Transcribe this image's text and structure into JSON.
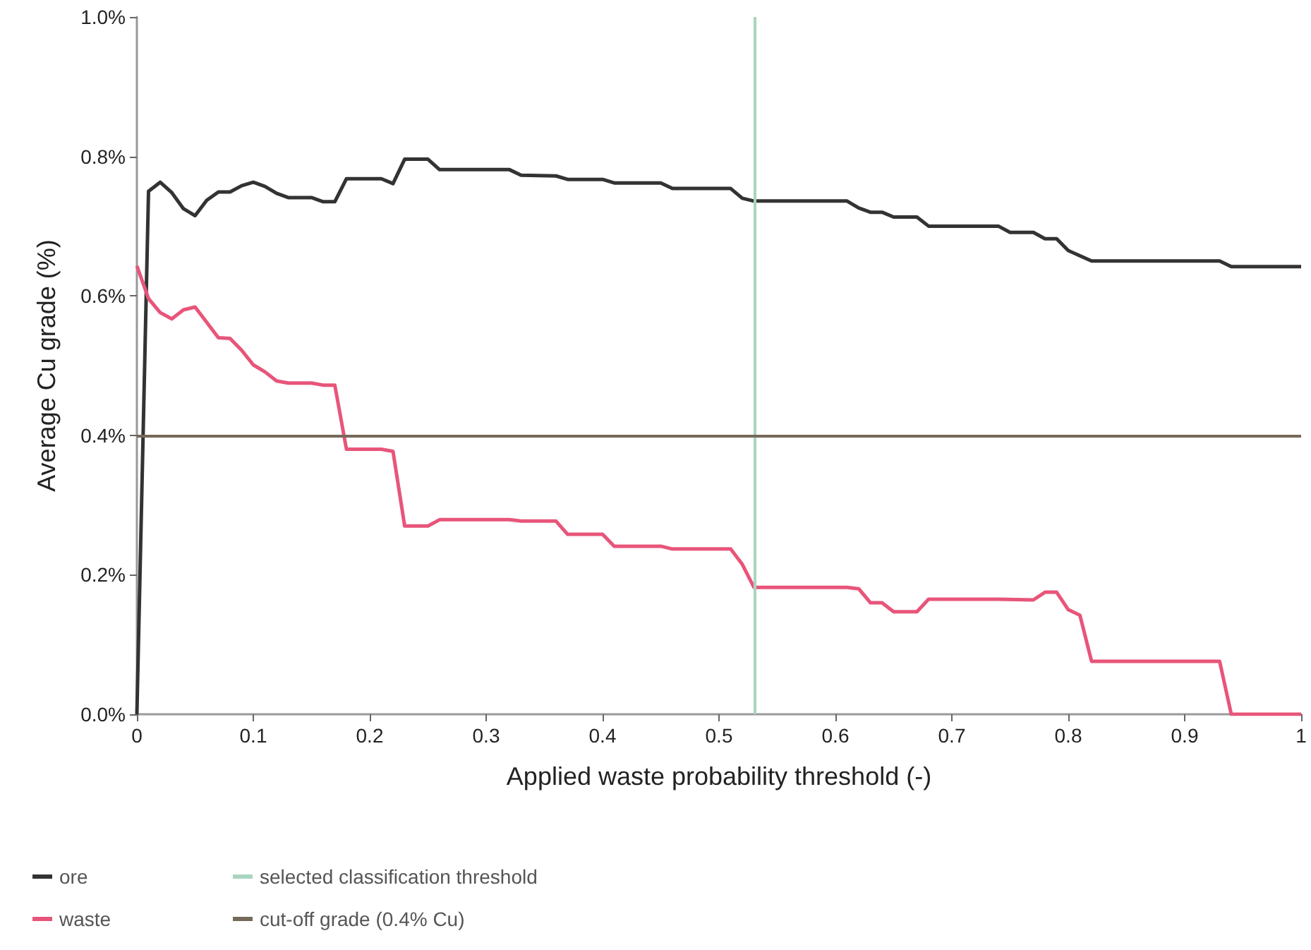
{
  "chart_data": {
    "type": "line",
    "xlabel": "Applied waste probability threshold (-)",
    "ylabel": "Average Cu grade (%)",
    "xlim": [
      0,
      1
    ],
    "xticks": [
      0,
      0.1,
      0.2,
      0.3,
      0.4,
      0.5,
      0.6,
      0.7,
      0.8,
      0.9,
      1
    ],
    "ylim": [
      0,
      1
    ],
    "yticks": [
      {
        "value": 0,
        "label": "0.0%"
      },
      {
        "value": 0.2,
        "label": "0.2%"
      },
      {
        "value": 0.4,
        "label": "0.4%"
      },
      {
        "value": 0.6,
        "label": "0.6%"
      },
      {
        "value": 0.8,
        "label": "0.8%"
      },
      {
        "value": 1,
        "label": "1.0%"
      }
    ],
    "grid": false,
    "legend": "bottom",
    "marker": "none",
    "line_style": "solid",
    "series": [
      {
        "name": "ore",
        "color": "#333333",
        "x": [
          0,
          0.01,
          0.02,
          0.03,
          0.04,
          0.05,
          0.06,
          0.07,
          0.08,
          0.09,
          0.1,
          0.11,
          0.12,
          0.13,
          0.15,
          0.16,
          0.17,
          0.18,
          0.21,
          0.22,
          0.23,
          0.25,
          0.26,
          0.32,
          0.33,
          0.36,
          0.37,
          0.4,
          0.41,
          0.45,
          0.46,
          0.51,
          0.52,
          0.53,
          0.61,
          0.62,
          0.63,
          0.64,
          0.65,
          0.67,
          0.68,
          0.74,
          0.75,
          0.77,
          0.78,
          0.79,
          0.8,
          0.82,
          0.93,
          0.94,
          1
        ],
        "values": [
          0,
          0.75,
          0.763,
          0.748,
          0.725,
          0.715,
          0.737,
          0.749,
          0.749,
          0.758,
          0.763,
          0.757,
          0.747,
          0.741,
          0.741,
          0.735,
          0.735,
          0.768,
          0.768,
          0.761,
          0.796,
          0.796,
          0.781,
          0.781,
          0.773,
          0.772,
          0.767,
          0.767,
          0.762,
          0.762,
          0.754,
          0.754,
          0.74,
          0.736,
          0.736,
          0.726,
          0.72,
          0.72,
          0.713,
          0.713,
          0.7,
          0.7,
          0.691,
          0.691,
          0.682,
          0.682,
          0.665,
          0.65,
          0.65,
          0.642,
          0.642
        ]
      },
      {
        "name": "waste",
        "color": "#e8557a",
        "x": [
          0,
          0.01,
          0.02,
          0.03,
          0.04,
          0.05,
          0.06,
          0.07,
          0.08,
          0.09,
          0.1,
          0.11,
          0.12,
          0.13,
          0.15,
          0.16,
          0.17,
          0.18,
          0.21,
          0.22,
          0.23,
          0.25,
          0.26,
          0.32,
          0.33,
          0.36,
          0.37,
          0.4,
          0.41,
          0.45,
          0.46,
          0.51,
          0.52,
          0.53,
          0.61,
          0.62,
          0.63,
          0.64,
          0.65,
          0.67,
          0.68,
          0.74,
          0.77,
          0.78,
          0.79,
          0.8,
          0.81,
          0.82,
          0.93,
          0.94,
          1
        ],
        "values": [
          0.643,
          0.596,
          0.576,
          0.567,
          0.58,
          0.584,
          0.562,
          0.54,
          0.539,
          0.522,
          0.501,
          0.491,
          0.478,
          0.475,
          0.475,
          0.472,
          0.472,
          0.38,
          0.38,
          0.377,
          0.27,
          0.27,
          0.279,
          0.279,
          0.277,
          0.277,
          0.258,
          0.258,
          0.241,
          0.241,
          0.237,
          0.237,
          0.215,
          0.182,
          0.182,
          0.18,
          0.16,
          0.16,
          0.147,
          0.147,
          0.165,
          0.165,
          0.164,
          0.175,
          0.175,
          0.15,
          0.142,
          0.076,
          0.076,
          0,
          0
        ]
      }
    ],
    "ref_lines": [
      {
        "axis": "x",
        "value": 0.532,
        "label": "selected classification threshold",
        "color": "#a8d5c0"
      },
      {
        "axis": "y",
        "value": 0.4,
        "label": "cut-off grade (0.4% Cu)",
        "color": "#75695a"
      }
    ]
  }
}
